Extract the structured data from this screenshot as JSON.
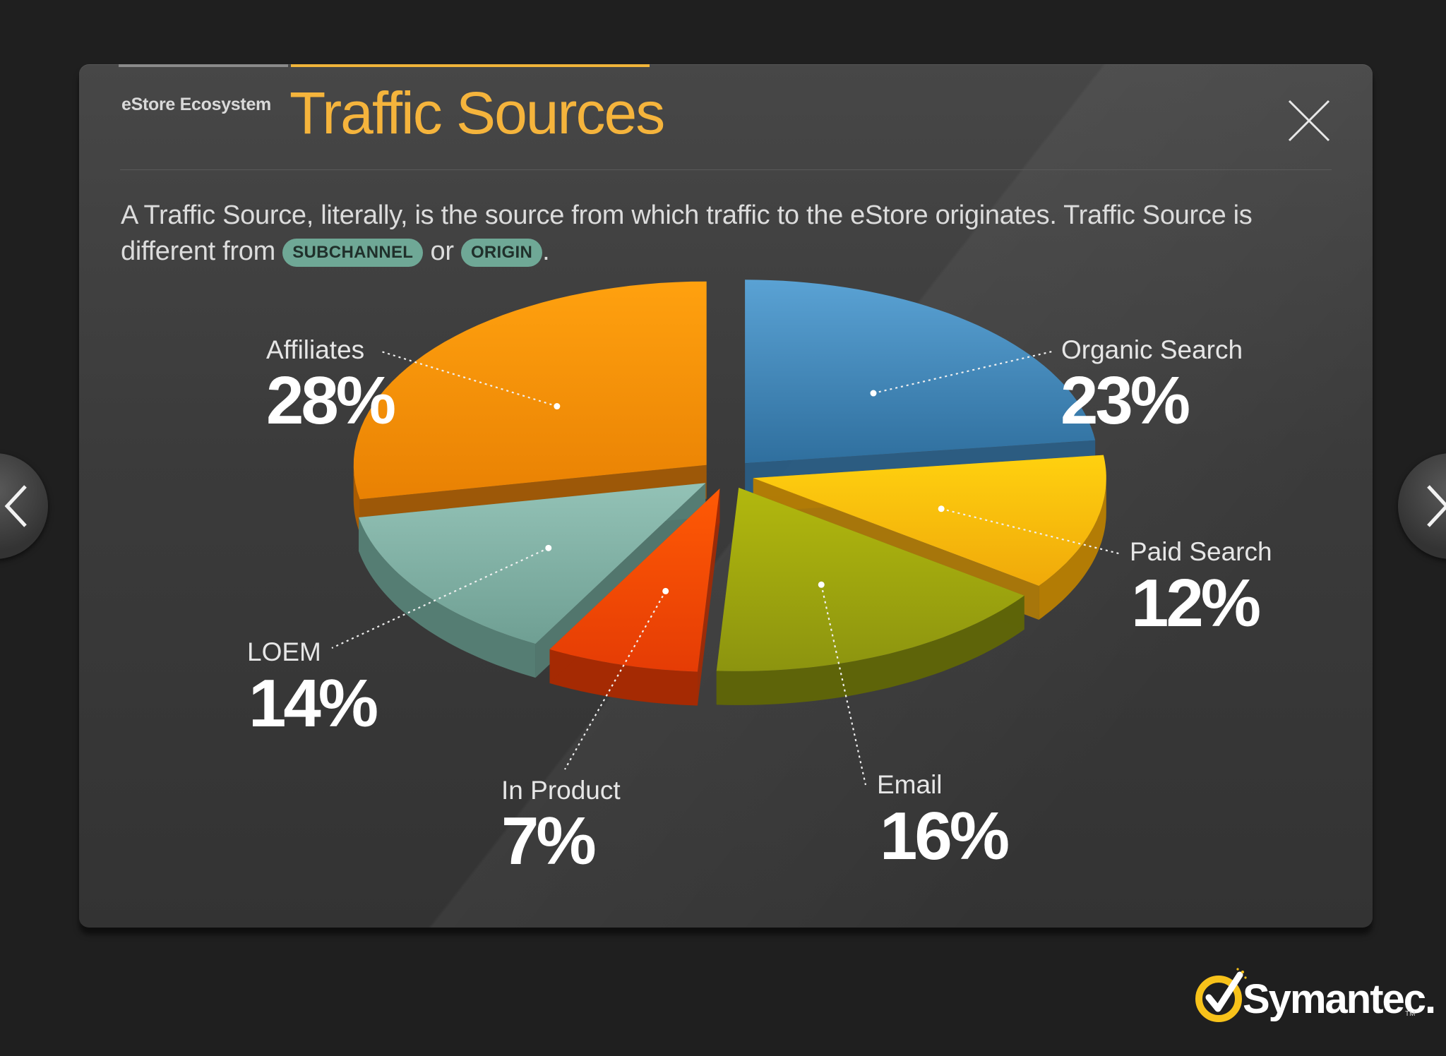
{
  "header": {
    "eyebrow": "eStore Ecosystem",
    "title": "Traffic Sources"
  },
  "description": {
    "text_before": "A Traffic Source, literally, is the source from which traffic to the eStore originates. Traffic Source is different from ",
    "pill1": "SUBCHANNEL",
    "text_mid": " or ",
    "pill2": "ORIGIN",
    "text_after": "."
  },
  "brand": {
    "name": "Symantec.",
    "tm": "TM"
  },
  "colors": {
    "accent": "#f5b43c",
    "pill_bg": "#6fa896",
    "panel_bg": "#3d3d3d"
  },
  "icons": {
    "close": "close-icon",
    "prev": "chevron-left-icon",
    "next": "chevron-right-icon",
    "logo": "symantec-check-icon"
  },
  "chart_data": {
    "type": "pie",
    "style": "3d exploded",
    "categories": [
      "Organic Search",
      "Paid Search",
      "Email",
      "In Product",
      "LOEM",
      "Affiliates"
    ],
    "values": [
      23,
      12,
      16,
      7,
      14,
      28
    ],
    "labels": [
      "23%",
      "12%",
      "16%",
      "7%",
      "14%",
      "28%"
    ],
    "colors": [
      "#3f86bf",
      "#f2b00a",
      "#9ba513",
      "#ee4a06",
      "#7fb0a3",
      "#f28f06"
    ]
  }
}
